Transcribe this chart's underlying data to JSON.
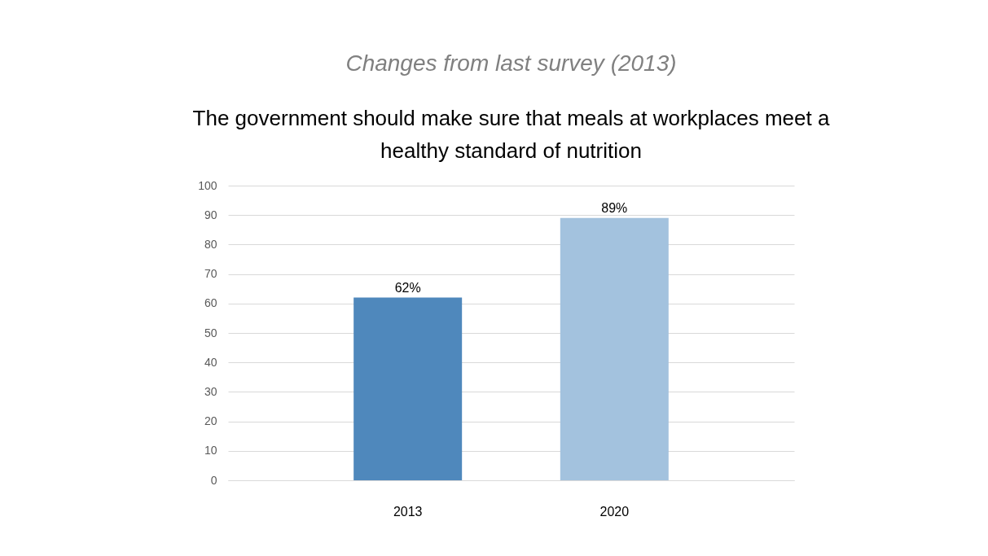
{
  "chart_data": {
    "type": "bar",
    "title": "Changes from last survey (2013)",
    "subtitle": "The government should make sure that meals at workplaces meet a healthy standard of nutrition",
    "categories": [
      "2013",
      "2020"
    ],
    "values": [
      62,
      89
    ],
    "colors": [
      "#4f88bc",
      "#a3c2de"
    ],
    "value_labels": [
      "62%",
      "89%"
    ],
    "ylim": [
      0,
      100
    ],
    "yticks": [
      0,
      10,
      20,
      30,
      40,
      50,
      60,
      70,
      80,
      90,
      100
    ],
    "grid": "y"
  }
}
